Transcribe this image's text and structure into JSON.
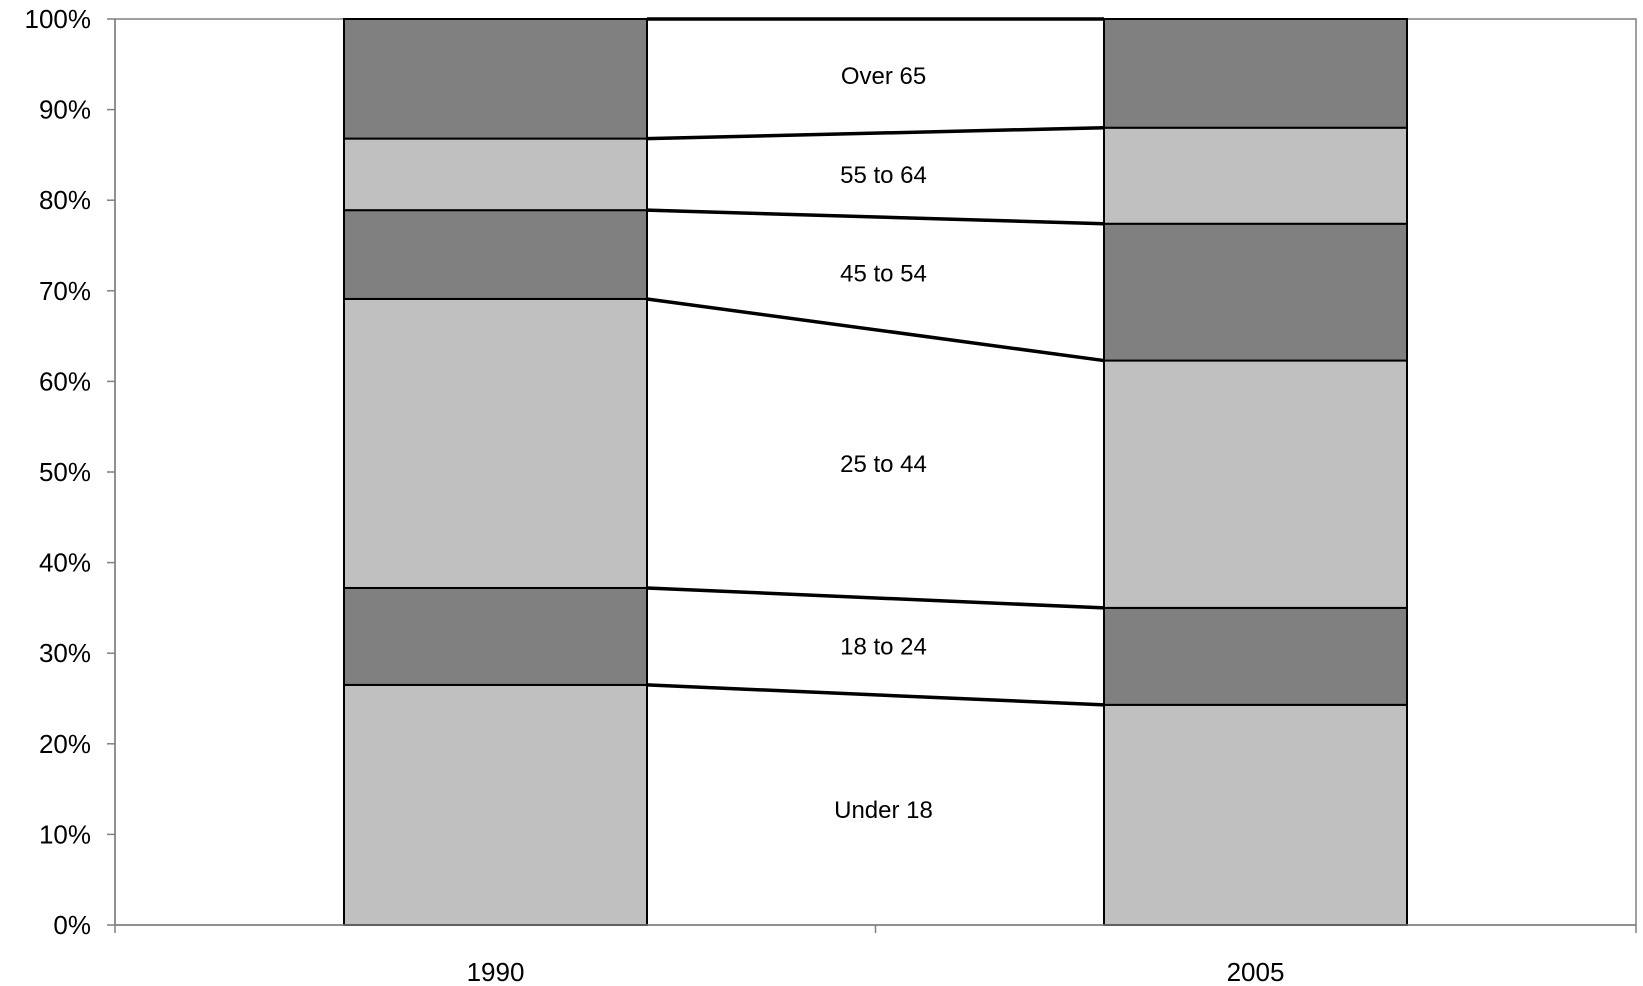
{
  "chart_data": {
    "type": "bar",
    "stacked": true,
    "categories": [
      "1990",
      "2005"
    ],
    "series": [
      {
        "name": "Under 18",
        "values": [
          26.5,
          24.3
        ],
        "color": "#c0c0c0"
      },
      {
        "name": "18 to 24",
        "values": [
          10.7,
          10.7
        ],
        "color": "#808080"
      },
      {
        "name": "25 to 44",
        "values": [
          31.9,
          27.3
        ],
        "color": "#c0c0c0"
      },
      {
        "name": "45 to 54",
        "values": [
          9.8,
          15.1
        ],
        "color": "#808080"
      },
      {
        "name": "55 to 64",
        "values": [
          7.9,
          10.6
        ],
        "color": "#c0c0c0"
      },
      {
        "name": "Over 65",
        "values": [
          13.2,
          12.0
        ],
        "color": "#808080"
      }
    ],
    "ylim": [
      0,
      100
    ],
    "yticks": [
      "0%",
      "10%",
      "20%",
      "30%",
      "40%",
      "50%",
      "60%",
      "70%",
      "80%",
      "90%",
      "100%"
    ],
    "series_lines": true,
    "grid": false,
    "legend": "between bars",
    "xlabel": "",
    "ylabel": ""
  }
}
